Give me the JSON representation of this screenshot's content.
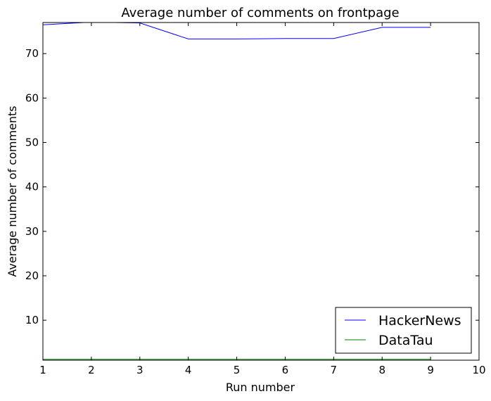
{
  "chart_data": {
    "type": "line",
    "title": "Average number of comments on frontpage",
    "xlabel": "Run number",
    "ylabel": "Average number of comments",
    "xlim": [
      1,
      10
    ],
    "ylim": [
      1,
      77
    ],
    "xticks": [
      1,
      2,
      3,
      4,
      5,
      6,
      7,
      8,
      9,
      10
    ],
    "yticks": [
      10,
      20,
      30,
      40,
      50,
      60,
      70
    ],
    "grid": false,
    "legend_position": "lower-right",
    "series": [
      {
        "name": "HackerNews",
        "color": "#0000ff",
        "x": [
          1,
          2,
          3,
          4,
          5,
          6,
          7,
          8,
          9
        ],
        "y": [
          76.5,
          77.1,
          76.9,
          73.3,
          73.3,
          73.4,
          73.4,
          75.9,
          75.9
        ]
      },
      {
        "name": "DataTau",
        "color": "#008000",
        "x": [
          1,
          2,
          3,
          4,
          5,
          6,
          7,
          8,
          9
        ],
        "y": [
          1.2,
          1.2,
          1.2,
          1.2,
          1.2,
          1.2,
          1.2,
          1.2,
          1.2
        ]
      }
    ]
  }
}
